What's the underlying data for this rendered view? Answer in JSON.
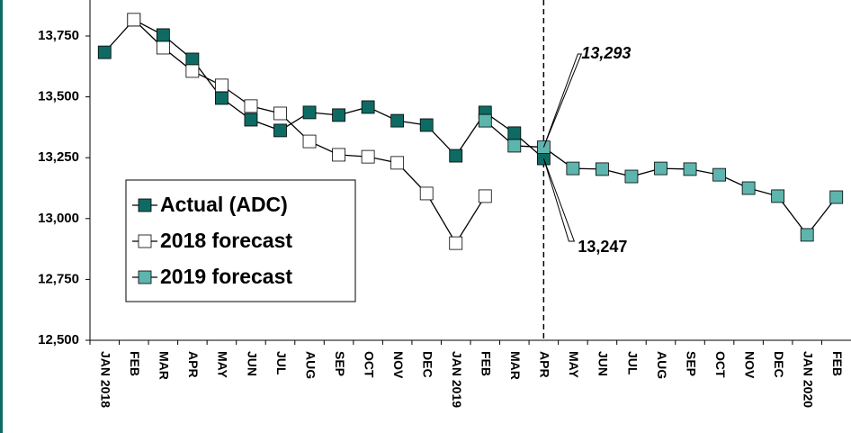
{
  "chart_data": {
    "type": "line",
    "categories": [
      "JAN 2018",
      "FEB",
      "MAR",
      "APR",
      "MAY",
      "JUN",
      "JUL",
      "AUG",
      "SEP",
      "OCT",
      "NOV",
      "DEC",
      "JAN 2019",
      "FEB",
      "MAR",
      "APR",
      "MAY",
      "JUN",
      "JUL",
      "AUG",
      "SEP",
      "OCT",
      "NOV",
      "DEC",
      "JAN 2020",
      "FEB"
    ],
    "series": [
      {
        "name": "Actual (ADC)",
        "color": "#0e6b63",
        "values": [
          13683,
          13817,
          13754,
          13654,
          13495,
          13406,
          13362,
          13436,
          13425,
          13458,
          13402,
          13384,
          13258,
          13436,
          13351,
          13247,
          null,
          null,
          null,
          null,
          null,
          null,
          null,
          null,
          null,
          null
        ]
      },
      {
        "name": "2018 forecast",
        "color": "#ffffff",
        "values": [
          null,
          13817,
          13702,
          13606,
          13547,
          13462,
          13432,
          13317,
          13262,
          13254,
          13229,
          13103,
          12899,
          13092,
          null,
          null,
          null,
          null,
          null,
          null,
          null,
          null,
          null,
          null,
          null,
          null
        ]
      },
      {
        "name": "2019 forecast",
        "color": "#5db5ad",
        "values": [
          null,
          null,
          null,
          null,
          null,
          null,
          null,
          null,
          null,
          null,
          null,
          null,
          null,
          13402,
          13299,
          13293,
          13206,
          13203,
          13173,
          13206,
          13203,
          13180,
          13125,
          13092,
          12933,
          13088
        ]
      }
    ],
    "ylim": [
      12500,
      13875
    ],
    "yticks": [
      {
        "value": 12500,
        "label": "12,500"
      },
      {
        "value": 12750,
        "label": "12,750"
      },
      {
        "value": 13000,
        "label": "13,000"
      },
      {
        "value": 13250,
        "label": "13,250"
      },
      {
        "value": 13500,
        "label": "13,500"
      },
      {
        "value": 13750,
        "label": "13,750"
      }
    ],
    "annotations": [
      {
        "text": "13,293"
      },
      {
        "text": "13,247"
      }
    ]
  }
}
